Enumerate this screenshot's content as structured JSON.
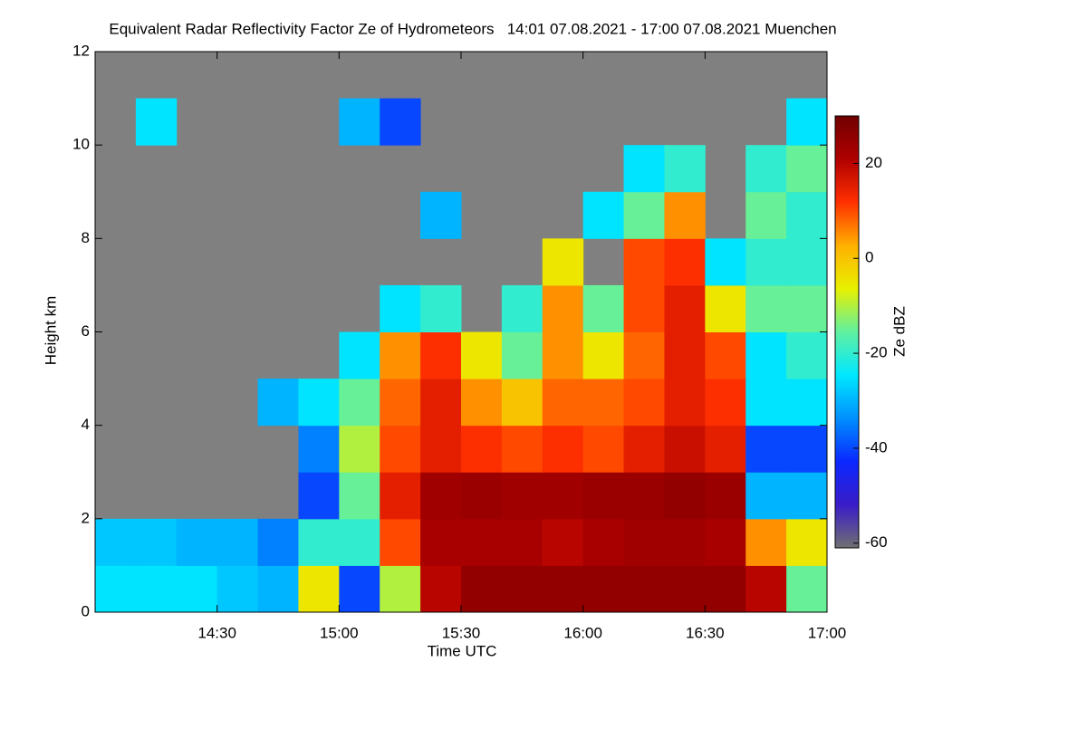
{
  "chart_data": {
    "type": "heatmap",
    "title": "Equivalent Radar Reflectivity Factor Ze of Hydrometeors   14:01 07.08.2021 - 17:00 07.08.2021 Muenchen",
    "x_label": "Time UTC",
    "y_label": "Height km",
    "colorbar_label": "Ze dBZ",
    "xlim": [
      14.0,
      17.0
    ],
    "xticks": [
      {
        "value": 14.5,
        "label": "14:30"
      },
      {
        "value": 15.0,
        "label": "15:00"
      },
      {
        "value": 15.5,
        "label": "15:30"
      },
      {
        "value": 16.0,
        "label": "16:00"
      },
      {
        "value": 16.5,
        "label": "16:30"
      },
      {
        "value": 17.0,
        "label": "17:00"
      }
    ],
    "ylim": [
      0,
      12
    ],
    "yticks": [
      0,
      2,
      4,
      6,
      8,
      10,
      12
    ],
    "zlim": [
      -61,
      30
    ],
    "zticks": [
      20,
      0,
      -20,
      -40,
      -60
    ],
    "background": "#808080",
    "colormap": [
      "#707070",
      "#3a1cc8",
      "#0a28ff",
      "#0090ff",
      "#00e8ff",
      "#60f0a0",
      "#e8f000",
      "#ffb000",
      "#ff3000",
      "#b00000",
      "#700000"
    ],
    "x_bins": [
      14.0,
      14.1667,
      14.3333,
      14.5,
      14.6667,
      14.8333,
      15.0,
      15.1667,
      15.3333,
      15.5,
      15.6667,
      15.8333,
      16.0,
      16.1667,
      16.3333,
      16.5,
      16.6667,
      16.8333,
      17.0
    ],
    "y_bins": [
      0,
      1,
      2,
      3,
      4,
      5,
      6,
      7,
      8,
      9,
      10,
      11,
      12
    ],
    "values": [
      [
        -25,
        -25,
        -25,
        -28,
        -30,
        -5,
        -40,
        -10,
        20,
        25,
        25,
        25,
        25,
        25,
        25,
        25,
        20,
        -15
      ],
      [
        -28,
        -28,
        -30,
        -30,
        -35,
        -20,
        -20,
        10,
        22,
        22,
        22,
        20,
        22,
        23,
        23,
        22,
        5,
        -5
      ],
      [
        null,
        null,
        null,
        null,
        null,
        -40,
        -15,
        15,
        23,
        24,
        23,
        23,
        24,
        24,
        25,
        24,
        -30,
        -30
      ],
      [
        null,
        null,
        null,
        null,
        null,
        -35,
        -10,
        10,
        15,
        12,
        10,
        12,
        10,
        15,
        18,
        15,
        -40,
        -40
      ],
      [
        null,
        null,
        null,
        null,
        -30,
        -25,
        -15,
        8,
        15,
        5,
        0,
        8,
        8,
        10,
        15,
        12,
        -25,
        -25
      ],
      [
        null,
        null,
        null,
        null,
        null,
        null,
        -25,
        5,
        12,
        -5,
        -15,
        5,
        -5,
        8,
        15,
        10,
        -25,
        -20
      ],
      [
        null,
        null,
        null,
        null,
        null,
        null,
        null,
        -25,
        -20,
        null,
        -20,
        5,
        -15,
        10,
        15,
        -5,
        -15,
        -15
      ],
      [
        null,
        null,
        null,
        null,
        null,
        null,
        null,
        null,
        null,
        null,
        null,
        -5,
        null,
        10,
        12,
        -25,
        -20,
        -20
      ],
      [
        null,
        null,
        null,
        null,
        null,
        null,
        null,
        null,
        -30,
        null,
        null,
        null,
        -25,
        -15,
        5,
        null,
        -15,
        -20
      ],
      [
        null,
        null,
        null,
        null,
        null,
        null,
        null,
        null,
        null,
        null,
        null,
        null,
        null,
        -25,
        -20,
        null,
        -20,
        -15
      ],
      [
        null,
        -25,
        null,
        null,
        null,
        null,
        -30,
        -40,
        null,
        null,
        null,
        null,
        null,
        null,
        null,
        null,
        null,
        -25
      ],
      [
        null,
        null,
        null,
        null,
        null,
        null,
        null,
        null,
        null,
        null,
        null,
        null,
        null,
        null,
        null,
        null,
        null,
        null
      ]
    ]
  }
}
